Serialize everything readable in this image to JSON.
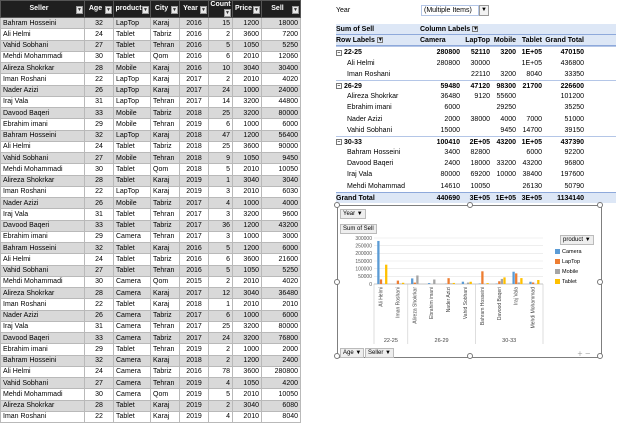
{
  "table": {
    "headers": [
      "Seller",
      "Age",
      "product",
      "City",
      "Year",
      "Count",
      "Price",
      "Sell"
    ],
    "rows": [
      [
        "Bahram Hosseini",
        "32",
        "LapTop",
        "Karaj",
        "2016",
        "15",
        "1200",
        "18000"
      ],
      [
        "Ali Helmi",
        "24",
        "Tablet",
        "Tabriz",
        "2016",
        "2",
        "3600",
        "7200"
      ],
      [
        "Vahid Sobhani",
        "27",
        "Tablet",
        "Tehran",
        "2016",
        "5",
        "1050",
        "5250"
      ],
      [
        "Mehdi Mohammadi",
        "30",
        "Tablet",
        "Qom",
        "2016",
        "6",
        "2010",
        "12060"
      ],
      [
        "Alireza Shokrkar",
        "28",
        "Mobile",
        "Karaj",
        "2016",
        "10",
        "3040",
        "30400"
      ],
      [
        "Iman Roshani",
        "22",
        "LapTop",
        "Karaj",
        "2017",
        "2",
        "2010",
        "4020"
      ],
      [
        "Nader Azizi",
        "26",
        "LapTop",
        "Karaj",
        "2017",
        "24",
        "1000",
        "24000"
      ],
      [
        "Iraj Vala",
        "31",
        "LapTop",
        "Tehran",
        "2017",
        "14",
        "3200",
        "44800"
      ],
      [
        "Davood Baqeri",
        "33",
        "Mobile",
        "Tabriz",
        "2018",
        "25",
        "3200",
        "80000"
      ],
      [
        "Ebrahim imani",
        "29",
        "Mobile",
        "Tehran",
        "2019",
        "6",
        "1000",
        "6000"
      ],
      [
        "Bahram Hosseini",
        "32",
        "LapTop",
        "Karaj",
        "2018",
        "47",
        "1200",
        "56400"
      ],
      [
        "Ali Helmi",
        "24",
        "Tablet",
        "Tabriz",
        "2018",
        "25",
        "3600",
        "90000"
      ],
      [
        "Vahid Sobhani",
        "27",
        "Mobile",
        "Tehran",
        "2018",
        "9",
        "1050",
        "9450"
      ],
      [
        "Mehdi Mohammadi",
        "30",
        "Tablet",
        "Qom",
        "2018",
        "5",
        "2010",
        "10050"
      ],
      [
        "Alireza Shokrkar",
        "28",
        "Tablet",
        "Karaj",
        "2019",
        "1",
        "3040",
        "3040"
      ],
      [
        "Iman Roshani",
        "22",
        "LapTop",
        "Karaj",
        "2019",
        "3",
        "2010",
        "6030"
      ],
      [
        "Nader Azizi",
        "26",
        "Mobile",
        "Tabriz",
        "2017",
        "4",
        "1000",
        "4000"
      ],
      [
        "Iraj Vala",
        "31",
        "Tablet",
        "Tehran",
        "2017",
        "3",
        "3200",
        "9600"
      ],
      [
        "Davood Baqeri",
        "33",
        "Tablet",
        "Tabriz",
        "2017",
        "36",
        "1200",
        "43200"
      ],
      [
        "Ebrahim imani",
        "29",
        "Camera",
        "Tehran",
        "2017",
        "3",
        "1000",
        "3000"
      ],
      [
        "Bahram Hosseini",
        "32",
        "Tablet",
        "Karaj",
        "2016",
        "5",
        "1200",
        "6000"
      ],
      [
        "Ali Helmi",
        "24",
        "Tablet",
        "Tabriz",
        "2016",
        "6",
        "3600",
        "21600"
      ],
      [
        "Vahid Sobhani",
        "27",
        "Tablet",
        "Tehran",
        "2016",
        "5",
        "1050",
        "5250"
      ],
      [
        "Mehdi Mohammadi",
        "30",
        "Camera",
        "Qom",
        "2015",
        "2",
        "2010",
        "4020"
      ],
      [
        "Alireza Shokrkar",
        "28",
        "Camera",
        "Karaj",
        "2017",
        "12",
        "3040",
        "36480"
      ],
      [
        "Iman Roshani",
        "22",
        "Tablet",
        "Karaj",
        "2018",
        "1",
        "2010",
        "2010"
      ],
      [
        "Nader Azizi",
        "26",
        "Camera",
        "Tabriz",
        "2017",
        "6",
        "1000",
        "6000"
      ],
      [
        "Iraj Vala",
        "31",
        "Camera",
        "Tehran",
        "2017",
        "25",
        "3200",
        "80000"
      ],
      [
        "Davood Baqeri",
        "33",
        "Camera",
        "Tabriz",
        "2017",
        "24",
        "3200",
        "76800"
      ],
      [
        "Ebrahim imani",
        "29",
        "Tablet",
        "Tehran",
        "2019",
        "2",
        "1000",
        "2000"
      ],
      [
        "Bahram Hosseini",
        "32",
        "Camera",
        "Karaj",
        "2018",
        "2",
        "1200",
        "2400"
      ],
      [
        "Ali Helmi",
        "24",
        "Camera",
        "Tabriz",
        "2016",
        "78",
        "3600",
        "280800"
      ],
      [
        "Vahid Sobhani",
        "27",
        "Camera",
        "Tehran",
        "2019",
        "4",
        "1050",
        "4200"
      ],
      [
        "Mehdi Mohammadi",
        "30",
        "Camera",
        "Qom",
        "2019",
        "5",
        "2010",
        "10050"
      ],
      [
        "Alireza Shokrkar",
        "28",
        "Tablet",
        "Karaj",
        "2019",
        "2",
        "3040",
        "6080"
      ],
      [
        "Iman Roshani",
        "22",
        "Tablet",
        "Karaj",
        "2019",
        "4",
        "2010",
        "8040"
      ]
    ]
  },
  "pivot": {
    "filter_label": "Year",
    "filter_value": "(Multiple Items)",
    "values_label": "Sum of Sell",
    "column_labels": "Column Labels",
    "row_labels": "Row Labels",
    "columns": [
      "Camera",
      "LapTop",
      "Mobile",
      "Tablet",
      "Grand Total"
    ],
    "groups": [
      {
        "name": "22-25",
        "values": [
          "280800",
          "52110",
          "3200",
          "1E+05",
          "470150"
        ],
        "rows": [
          {
            "name": "Ali Helmi",
            "values": [
              "280800",
              "30000",
              "",
              "1E+05",
              "436800"
            ]
          },
          {
            "name": "Iman Roshani",
            "values": [
              "",
              "22110",
              "3200",
              "8040",
              "33350"
            ]
          }
        ]
      },
      {
        "name": "26-29",
        "values": [
          "59480",
          "47120",
          "98300",
          "21700",
          "226600"
        ],
        "rows": [
          {
            "name": "Alireza Shokrkar",
            "values": [
              "36480",
              "9120",
              "55600",
              "",
              "101200"
            ]
          },
          {
            "name": "Ebrahim imani",
            "values": [
              "6000",
              "",
              "29250",
              "",
              "35250"
            ]
          },
          {
            "name": "Nader Azizi",
            "values": [
              "2000",
              "38000",
              "4000",
              "7000",
              "51000"
            ]
          },
          {
            "name": "Vahid Sobhani",
            "values": [
              "15000",
              "",
              "9450",
              "14700",
              "39150"
            ]
          }
        ]
      },
      {
        "name": "30-33",
        "values": [
          "100410",
          "2E+05",
          "43200",
          "1E+05",
          "437390"
        ],
        "rows": [
          {
            "name": "Bahram Hosseini",
            "values": [
              "3400",
              "82800",
              "",
              "6000",
              "92200"
            ]
          },
          {
            "name": "Davood Baqeri",
            "values": [
              "2400",
              "18000",
              "33200",
              "43200",
              "96800"
            ]
          },
          {
            "name": "Iraj Vala",
            "values": [
              "80000",
              "69200",
              "10000",
              "38400",
              "197600"
            ]
          },
          {
            "name": "Mehdi Mohammad",
            "values": [
              "14610",
              "10050",
              "",
              "26130",
              "50790"
            ]
          }
        ]
      }
    ],
    "grand_total_label": "Grand Total",
    "grand_total": [
      "440690",
      "3E+05",
      "1E+05",
      "3E+05",
      "1134140"
    ]
  },
  "chart_btns": {
    "year": "Year",
    "sum_of_sell": "Sum of Sell",
    "product": "product",
    "age": "Age",
    "seller": "Seller"
  },
  "chart_data": {
    "type": "bar",
    "ylim": [
      0,
      300000
    ],
    "yticks": [
      "0",
      "50000",
      "100000",
      "150000",
      "200000",
      "250000",
      "300000"
    ],
    "categories": [
      "Ali Helmi",
      "Iman Roshani",
      "Alireza Shokrkar",
      "Ebrahim imani",
      "Nader Azizi",
      "Vahid Sobhani",
      "Bahram Hosseini",
      "Davood Baqeri",
      "Iraj Vala",
      "Mehdi Mohammad"
    ],
    "groups": [
      {
        "label": "22-25",
        "count": 2
      },
      {
        "label": "26-29",
        "count": 4
      },
      {
        "label": "30-33",
        "count": 4
      }
    ],
    "series": [
      {
        "name": "Camera",
        "color": "#5b9bd5",
        "values": [
          280800,
          0,
          36480,
          6000,
          2000,
          15000,
          3400,
          2400,
          80000,
          14610
        ]
      },
      {
        "name": "LapTop",
        "color": "#ed7d31",
        "values": [
          30000,
          22110,
          9120,
          0,
          38000,
          0,
          82800,
          18000,
          69200,
          10050
        ]
      },
      {
        "name": "Mobile",
        "color": "#a5a5a5",
        "values": [
          0,
          3200,
          55600,
          29250,
          4000,
          9450,
          0,
          33200,
          10000,
          0
        ]
      },
      {
        "name": "Tablet",
        "color": "#ffc000",
        "values": [
          126000,
          8040,
          0,
          0,
          7000,
          14700,
          6000,
          43200,
          38400,
          26130
        ]
      }
    ]
  }
}
